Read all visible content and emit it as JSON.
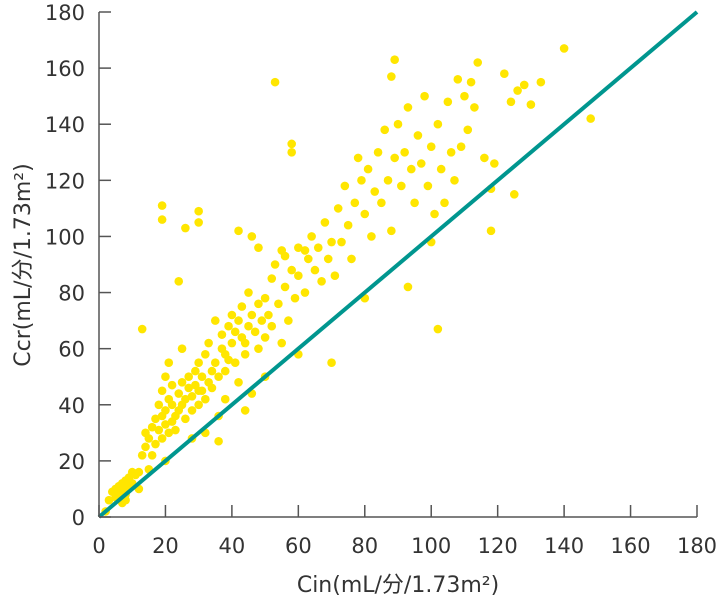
{
  "chart_data": {
    "type": "scatter",
    "title": "",
    "xlabel": "Cin(mL/分/1.73m²)",
    "ylabel": "Ccr(mL/分/1.73m²)",
    "xlim": [
      0,
      180
    ],
    "ylim": [
      0,
      180
    ],
    "xticks": [
      0,
      20,
      40,
      60,
      80,
      100,
      120,
      140,
      160,
      180
    ],
    "yticks": [
      0,
      20,
      40,
      60,
      80,
      100,
      120,
      140,
      160,
      180
    ],
    "grid": false,
    "point_color": "#ffe600",
    "line_color": "#00968f",
    "reference_line": {
      "from": [
        0,
        0
      ],
      "to": [
        180,
        180
      ]
    },
    "points": [
      [
        2,
        2
      ],
      [
        3,
        6
      ],
      [
        4,
        9
      ],
      [
        5,
        7
      ],
      [
        5,
        10
      ],
      [
        6,
        8
      ],
      [
        6,
        11
      ],
      [
        7,
        9
      ],
      [
        7,
        12
      ],
      [
        8,
        10
      ],
      [
        8,
        13
      ],
      [
        9,
        11
      ],
      [
        9,
        14
      ],
      [
        10,
        12
      ],
      [
        10,
        16
      ],
      [
        11,
        15
      ],
      [
        8,
        6
      ],
      [
        7,
        5
      ],
      [
        12,
        10
      ],
      [
        12,
        16
      ],
      [
        13,
        22
      ],
      [
        14,
        25
      ],
      [
        14,
        30
      ],
      [
        15,
        17
      ],
      [
        15,
        28
      ],
      [
        16,
        22
      ],
      [
        16,
        32
      ],
      [
        17,
        26
      ],
      [
        17,
        35
      ],
      [
        18,
        31
      ],
      [
        18,
        40
      ],
      [
        19,
        28
      ],
      [
        19,
        36
      ],
      [
        19,
        45
      ],
      [
        20,
        33
      ],
      [
        20,
        38
      ],
      [
        20,
        50
      ],
      [
        21,
        30
      ],
      [
        21,
        42
      ],
      [
        21,
        55
      ],
      [
        22,
        34
      ],
      [
        22,
        40
      ],
      [
        22,
        47
      ],
      [
        23,
        36
      ],
      [
        23,
        31
      ],
      [
        24,
        44
      ],
      [
        24,
        38
      ],
      [
        25,
        40
      ],
      [
        25,
        48
      ],
      [
        25,
        60
      ],
      [
        26,
        42
      ],
      [
        26,
        35
      ],
      [
        27,
        46
      ],
      [
        27,
        50
      ],
      [
        28,
        43
      ],
      [
        28,
        38
      ],
      [
        29,
        52
      ],
      [
        29,
        47
      ],
      [
        30,
        40
      ],
      [
        30,
        55
      ],
      [
        31,
        50
      ],
      [
        31,
        45
      ],
      [
        32,
        58
      ],
      [
        32,
        42
      ],
      [
        33,
        48
      ],
      [
        33,
        62
      ],
      [
        34,
        52
      ],
      [
        34,
        46
      ],
      [
        35,
        55
      ],
      [
        35,
        70
      ],
      [
        36,
        50
      ],
      [
        36,
        36
      ],
      [
        37,
        60
      ],
      [
        37,
        65
      ],
      [
        38,
        52
      ],
      [
        38,
        58
      ],
      [
        39,
        68
      ],
      [
        39,
        56
      ],
      [
        40,
        62
      ],
      [
        40,
        72
      ],
      [
        41,
        55
      ],
      [
        41,
        66
      ],
      [
        42,
        70
      ],
      [
        42,
        48
      ],
      [
        43,
        64
      ],
      [
        43,
        75
      ],
      [
        44,
        62
      ],
      [
        44,
        58
      ],
      [
        45,
        68
      ],
      [
        45,
        80
      ],
      [
        46,
        72
      ],
      [
        46,
        44
      ],
      [
        47,
        66
      ],
      [
        48,
        76
      ],
      [
        48,
        60
      ],
      [
        49,
        70
      ],
      [
        50,
        78
      ],
      [
        50,
        64
      ],
      [
        51,
        72
      ],
      [
        52,
        85
      ],
      [
        52,
        68
      ],
      [
        53,
        90
      ],
      [
        54,
        76
      ],
      [
        55,
        95
      ],
      [
        55,
        62
      ],
      [
        56,
        82
      ],
      [
        57,
        70
      ],
      [
        58,
        88
      ],
      [
        59,
        78
      ],
      [
        60,
        86
      ],
      [
        60,
        96
      ],
      [
        62,
        80
      ],
      [
        63,
        92
      ],
      [
        64,
        100
      ],
      [
        65,
        88
      ],
      [
        66,
        96
      ],
      [
        67,
        84
      ],
      [
        68,
        105
      ],
      [
        69,
        92
      ],
      [
        70,
        98
      ],
      [
        71,
        86
      ],
      [
        72,
        110
      ],
      [
        73,
        98
      ],
      [
        74,
        118
      ],
      [
        75,
        104
      ],
      [
        76,
        92
      ],
      [
        77,
        112
      ],
      [
        78,
        128
      ],
      [
        79,
        120
      ],
      [
        80,
        108
      ],
      [
        81,
        124
      ],
      [
        82,
        100
      ],
      [
        83,
        116
      ],
      [
        84,
        130
      ],
      [
        85,
        112
      ],
      [
        86,
        138
      ],
      [
        87,
        120
      ],
      [
        88,
        102
      ],
      [
        89,
        128
      ],
      [
        90,
        140
      ],
      [
        91,
        118
      ],
      [
        92,
        130
      ],
      [
        93,
        146
      ],
      [
        94,
        124
      ],
      [
        95,
        112
      ],
      [
        96,
        136
      ],
      [
        97,
        126
      ],
      [
        98,
        150
      ],
      [
        99,
        118
      ],
      [
        100,
        132
      ],
      [
        101,
        108
      ],
      [
        102,
        140
      ],
      [
        103,
        124
      ],
      [
        104,
        112
      ],
      [
        105,
        148
      ],
      [
        106,
        130
      ],
      [
        107,
        120
      ],
      [
        108,
        156
      ],
      [
        109,
        132
      ],
      [
        110,
        150
      ],
      [
        111,
        138
      ],
      [
        112,
        155
      ],
      [
        113,
        146
      ],
      [
        116,
        128
      ],
      [
        119,
        126
      ],
      [
        122,
        158
      ],
      [
        124,
        148
      ],
      [
        126,
        152
      ],
      [
        128,
        154
      ],
      [
        130,
        147
      ],
      [
        133,
        155
      ],
      [
        42,
        102
      ],
      [
        46,
        100
      ],
      [
        48,
        96
      ],
      [
        56,
        93
      ],
      [
        62,
        95
      ],
      [
        30,
        45
      ],
      [
        32,
        30
      ],
      [
        36,
        27
      ],
      [
        28,
        28
      ],
      [
        38,
        42
      ],
      [
        44,
        38
      ],
      [
        80,
        78
      ],
      [
        100,
        98
      ],
      [
        60,
        58
      ],
      [
        50,
        50
      ],
      [
        20,
        20
      ],
      [
        8,
        8
      ],
      [
        19,
        111
      ],
      [
        19,
        106
      ],
      [
        30,
        109
      ],
      [
        30,
        105
      ],
      [
        26,
        103
      ],
      [
        24,
        84
      ],
      [
        53,
        155
      ],
      [
        58,
        133
      ],
      [
        58,
        130
      ],
      [
        89,
        163
      ],
      [
        88,
        157
      ],
      [
        114,
        162
      ],
      [
        140,
        167
      ],
      [
        148,
        142
      ],
      [
        102,
        67
      ],
      [
        118,
        102
      ],
      [
        125,
        115
      ],
      [
        118,
        117
      ],
      [
        93,
        82
      ],
      [
        70,
        55
      ],
      [
        13,
        67
      ]
    ]
  }
}
